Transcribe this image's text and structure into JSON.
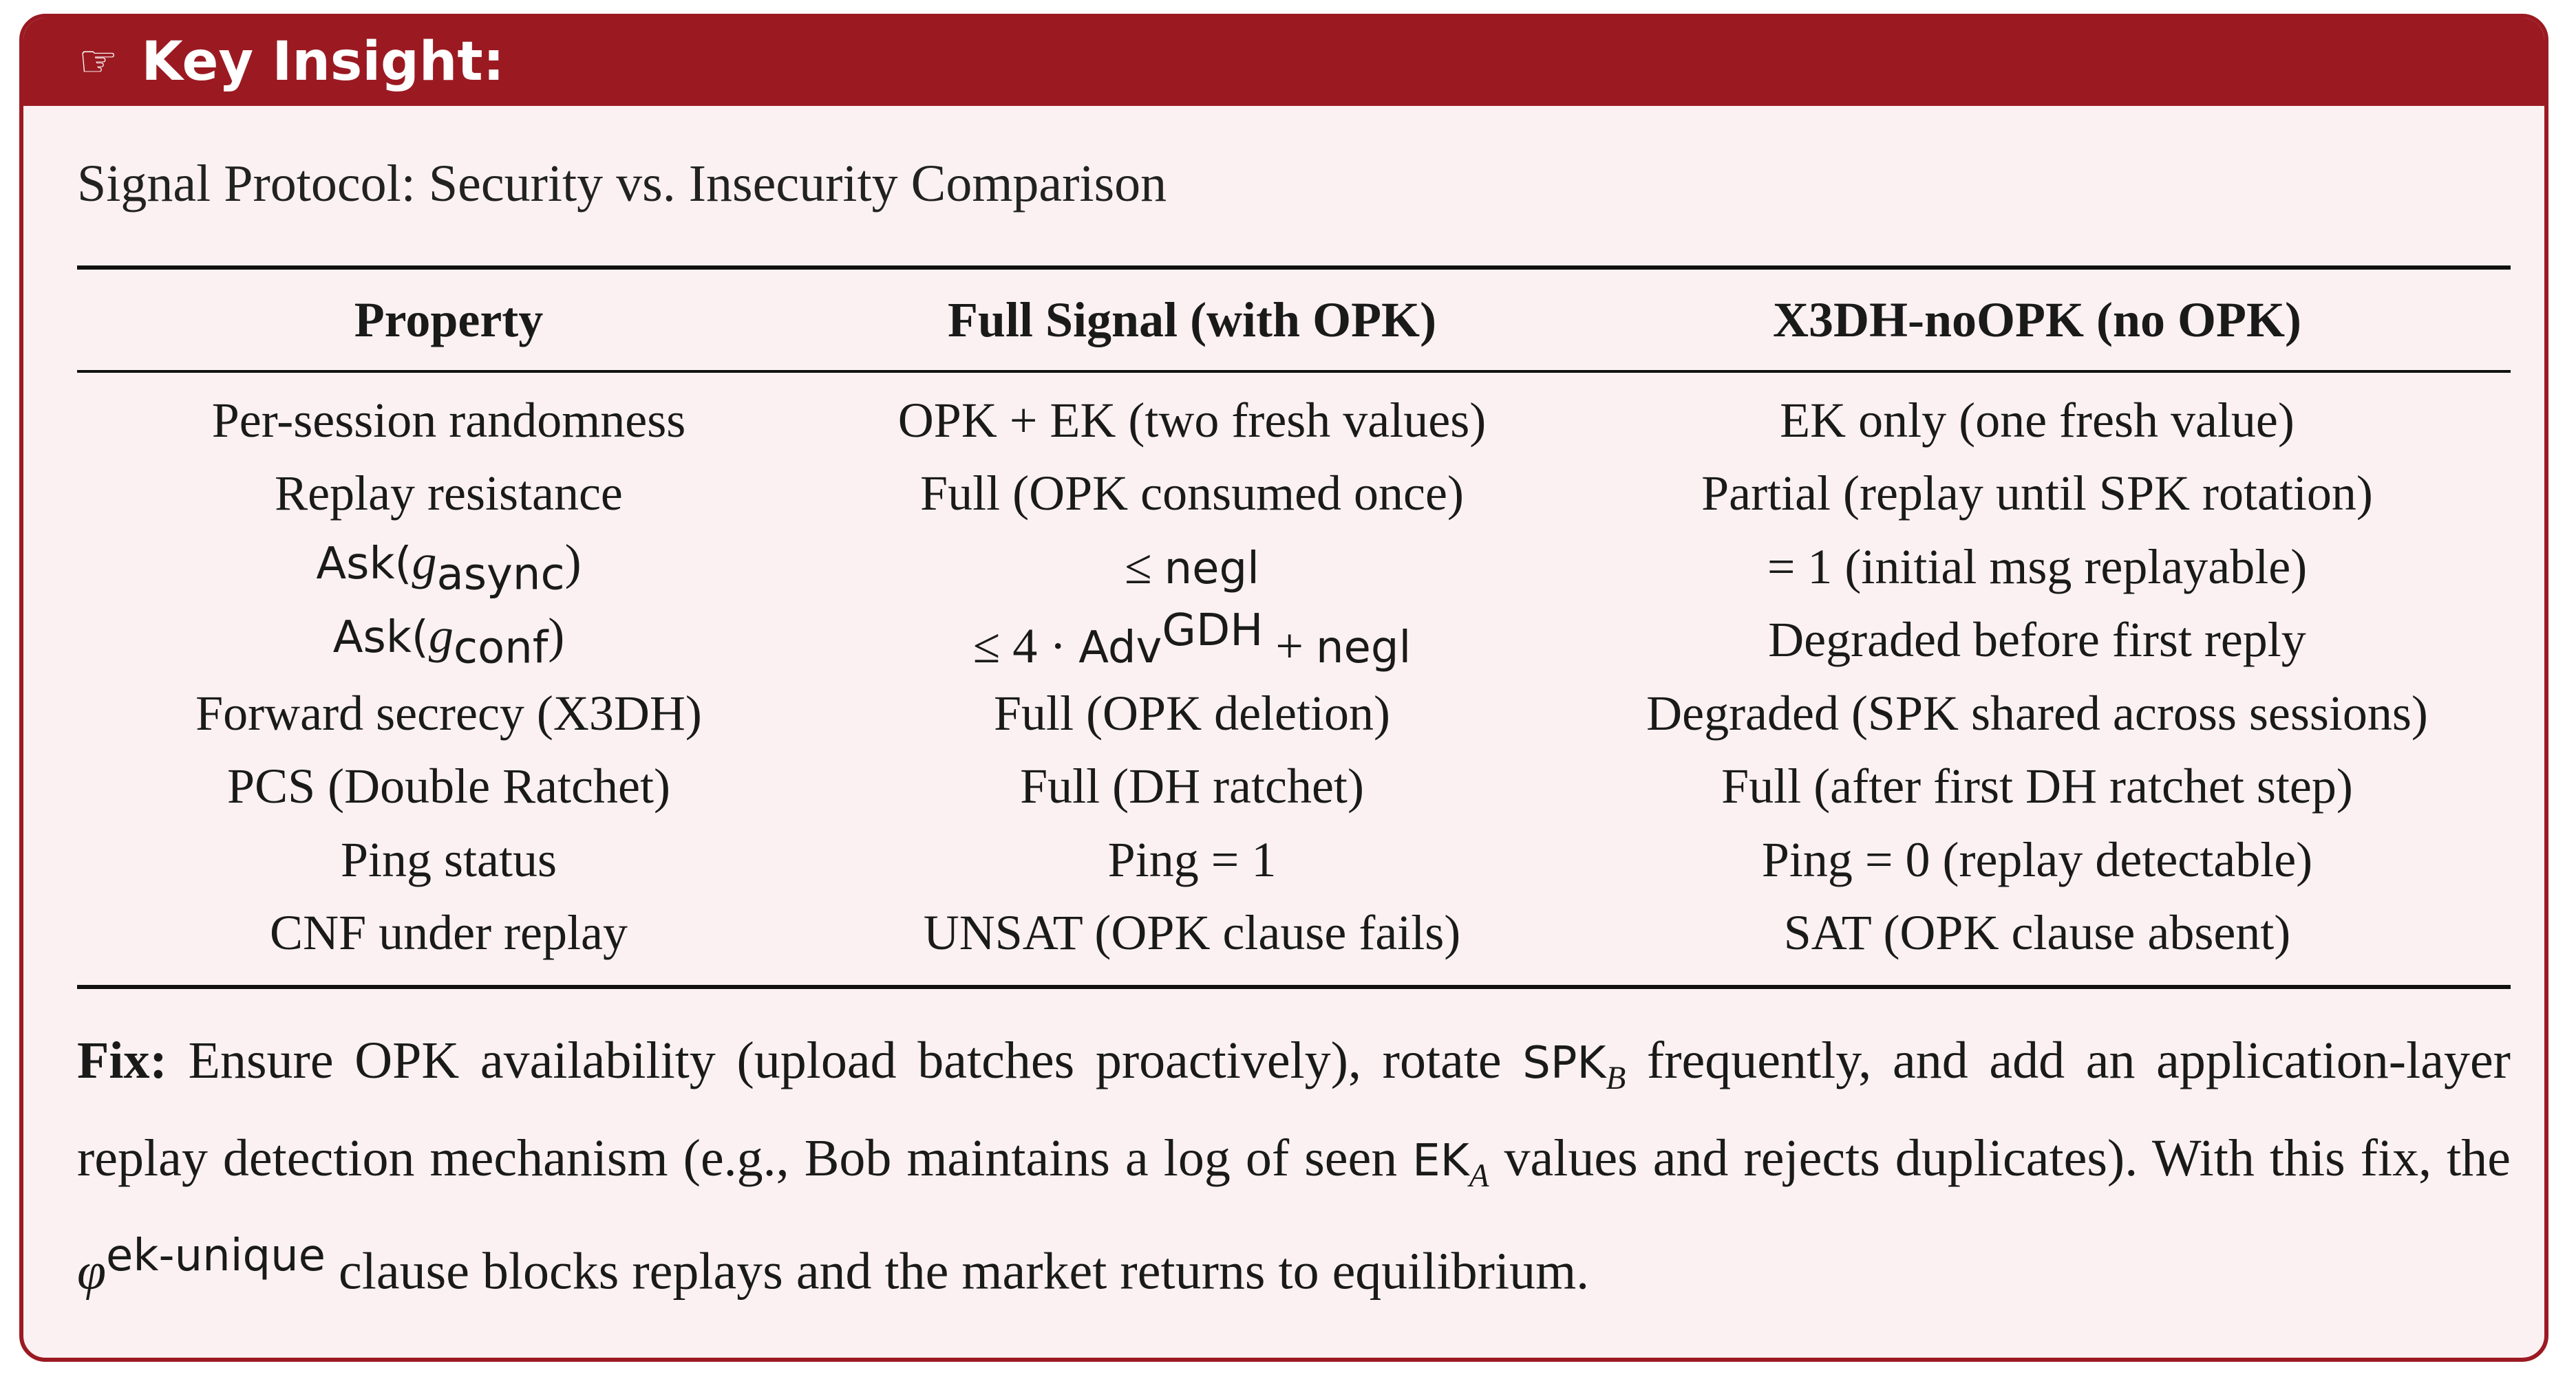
{
  "box": {
    "header_icon": "pointing-hand-icon",
    "header_glyph": "☞",
    "header_title": "Key Insight:",
    "subtitle": "Signal Protocol: Security vs. Insecurity Comparison"
  },
  "table": {
    "headers": [
      "Property",
      "Full Signal (with OPK)",
      "X3DH-noOPK (no OPK)"
    ],
    "rows": [
      {
        "property": "Per-session randomness",
        "full": "OPK + EK (two fresh values)",
        "noopk": "EK only (one fresh value)"
      },
      {
        "property": "Replay resistance",
        "full": "Full (OPK consumed once)",
        "noopk": "Partial (replay until SPK rotation)"
      },
      {
        "property": {
          "ask": "Ask(",
          "g": "g",
          "sub": "async",
          "close": ")"
        },
        "full": {
          "le": "≤",
          "negl": "negl"
        },
        "noopk": "= 1 (initial msg replayable)"
      },
      {
        "property": {
          "ask": "Ask(",
          "g": "g",
          "sub": "conf",
          "close": ")"
        },
        "full": {
          "le": "≤ 4 · ",
          "adv": "Adv",
          "sup": "GDH",
          "plus": " + ",
          "negl": "negl"
        },
        "noopk": "Degraded before first reply"
      },
      {
        "property": "Forward secrecy (X3DH)",
        "full": "Full (OPK deletion)",
        "noopk": "Degraded (SPK shared across sessions)"
      },
      {
        "property": "PCS (Double Ratchet)",
        "full": "Full (DH ratchet)",
        "noopk": "Full (after first DH ratchet step)"
      },
      {
        "property": "Ping status",
        "full": "Ping = 1",
        "noopk": "Ping = 0 (replay detectable)"
      },
      {
        "property": "CNF under replay",
        "full": "UNSAT (OPK clause fails)",
        "noopk": "SAT (OPK clause absent)"
      }
    ]
  },
  "fix": {
    "label": "Fix:",
    "t1": " Ensure OPK availability (upload batches proactively), rotate ",
    "spk": "SPK",
    "spk_sub": "B",
    "t2": " frequently, and add an application-layer replay detection mechanism (e.g., Bob maintains a log of seen ",
    "ek": "EK",
    "ek_sub": "A",
    "t3": " values and rejects duplicates).  With this fix, the ",
    "phi": "φ",
    "phi_sup": "ek-unique",
    "t4": " clause blocks replays and the market returns to equilibrium."
  },
  "colors": {
    "frame": "#9b1a22",
    "background": "#fbf1f2",
    "header_text": "#ffffff"
  }
}
